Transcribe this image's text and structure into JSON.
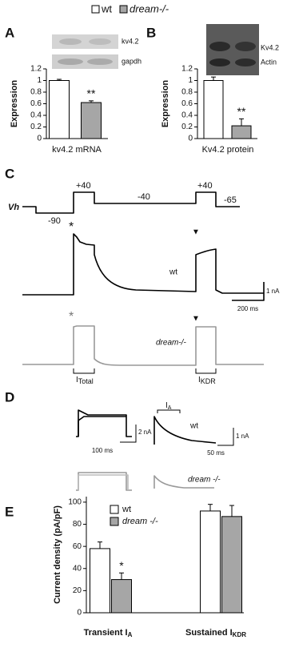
{
  "legend": {
    "items": [
      {
        "name": "wt",
        "color": "#ffffff"
      },
      {
        "name": "dream-/-",
        "color": "#a6a6a6"
      }
    ]
  },
  "chart_data": [
    {
      "type": "bar",
      "panel": "A",
      "blot_labels": [
        "kv4.2",
        "gapdh"
      ],
      "xlabel": "kv4.2 mRNA",
      "ylabel": "Expression",
      "categories": [
        null,
        null
      ],
      "values": [
        1,
        0.62
      ],
      "errors": [
        0.02,
        0.03
      ],
      "colors": [
        "#ffffff",
        "#a6a6a6"
      ],
      "value_annotations": [
        null,
        "**"
      ],
      "ylim": [
        0,
        1.2
      ],
      "yticks": [
        0,
        0.2,
        0.4,
        0.6,
        0.8,
        1,
        1.2
      ]
    },
    {
      "type": "bar",
      "panel": "B",
      "blot_labels": [
        "Kv4.2",
        "Actin"
      ],
      "xlabel": "Kv4.2 protein",
      "ylabel": "Expression",
      "categories": [
        null,
        null
      ],
      "values": [
        1,
        0.22
      ],
      "errors": [
        0.06,
        0.12
      ],
      "colors": [
        "#ffffff",
        "#a6a6a6"
      ],
      "value_annotations": [
        null,
        "**"
      ],
      "ylim": [
        0,
        1.2
      ],
      "yticks": [
        0,
        0.2,
        0.4,
        0.6,
        0.8,
        1,
        1.2
      ]
    },
    {
      "type": "bar",
      "panel": "E",
      "ylabel": "Current density (pA/pF)",
      "categories": [
        "Transient I",
        "Sustained I"
      ],
      "category_subscripts": [
        "A",
        "KDR"
      ],
      "series": [
        {
          "name": "wt",
          "color": "#ffffff",
          "values": [
            58,
            92
          ],
          "errors": [
            6,
            6
          ]
        },
        {
          "name": "dream -/-",
          "color": "#a6a6a6",
          "values": [
            30,
            87
          ],
          "errors": [
            6,
            10
          ],
          "value_annotations": [
            "*",
            null
          ]
        }
      ],
      "ylim": [
        0,
        105
      ],
      "yticks": [
        0,
        20,
        40,
        60,
        80,
        100
      ]
    }
  ],
  "panel_c": {
    "label": "C",
    "protocol": {
      "vh": "Vh",
      "step1": "+40",
      "step2": "-40",
      "step3": "+40",
      "step4": "-65",
      "hold": "-90"
    },
    "wt_label": "wt",
    "dream_label": "dream-/-",
    "wt_markers": [
      "*",
      "▼"
    ],
    "dream_markers": [
      "*",
      "▼"
    ],
    "scale_current": "1 nA",
    "scale_time": "200 ms",
    "currents": [
      {
        "main": "I",
        "sub": "Total"
      },
      {
        "main": "I",
        "sub": "KDR"
      }
    ]
  },
  "panel_d": {
    "label": "D",
    "current": {
      "main": "I",
      "sub": "A"
    },
    "left_scale": {
      "current": "2 nA",
      "time": "100 ms"
    },
    "right_scale": {
      "current": "1 nA",
      "time": "50 ms"
    },
    "wt_label": "wt",
    "dream_label": "dream -/-"
  }
}
